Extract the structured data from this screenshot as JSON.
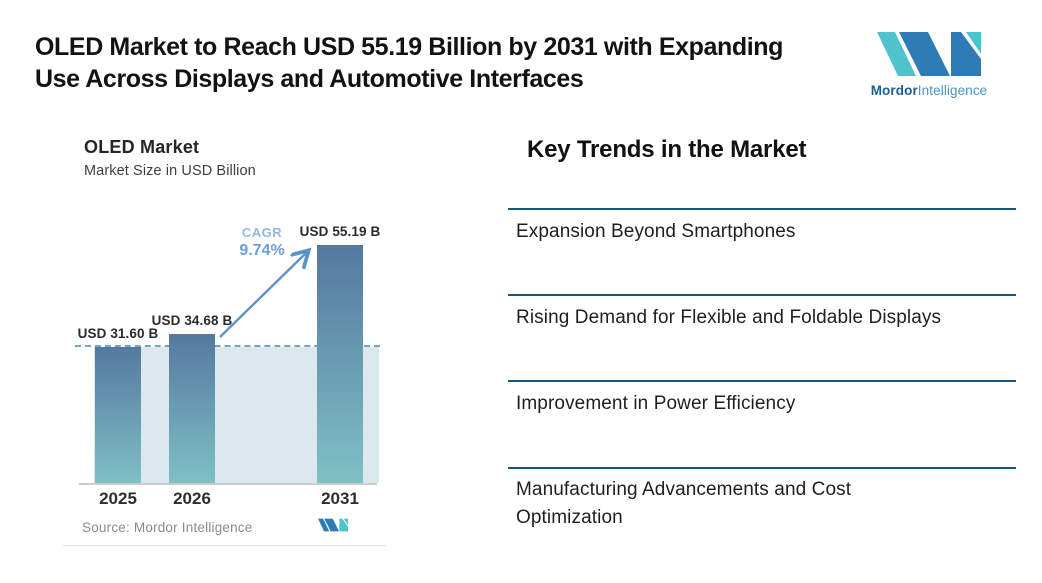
{
  "header": {
    "title_lines": [
      "OLED Market to Reach USD 55.19 Billion by 2031 with Expanding",
      "Use Across Displays and Automotive Interfaces"
    ]
  },
  "brand": {
    "name_bold": "Mordor",
    "name_regular": "Intelligence"
  },
  "chart_data": {
    "type": "bar",
    "title": "OLED Market",
    "subtitle": "Market Size in USD Billion",
    "categories": [
      "2025",
      "2026",
      "2031"
    ],
    "values": [
      31.6,
      34.68,
      55.19
    ],
    "bar_labels": [
      "USD 31.60 B",
      "USD 34.68 B",
      "USD 55.19 B"
    ],
    "unit": "USD Billion",
    "cagr_label": "CAGR",
    "cagr_value": "9.74%",
    "annotation": "Growth arrow from 2026 bar to 2031 bar labeled CAGR 9.74%",
    "reference_line_value": 31.6,
    "reference_line_style": "dashed",
    "ylim": [
      0,
      60
    ],
    "grid": false,
    "legend": false,
    "source": "Source: Mordor Intelligence",
    "bar_gradient_top": "#54799f",
    "bar_gradient_bottom": "#7fc0c5"
  },
  "trends": {
    "heading": "Key Trends in the Market",
    "items": [
      "Expansion Beyond Smartphones",
      "Rising Demand for Flexible and Foldable Displays",
      "Improvement in Power Efficiency",
      "Manufacturing Advancements and Cost Optimization"
    ]
  },
  "colors": {
    "trend_rule": "#1b5875",
    "dashed_reference": "#74a3c9",
    "band": "#dce7ee",
    "arrow": "#5d93cb",
    "cagr_text": "#6d9ed6",
    "logo_blue": "#2d7cb5",
    "logo_teal": "#4fc3cc"
  }
}
